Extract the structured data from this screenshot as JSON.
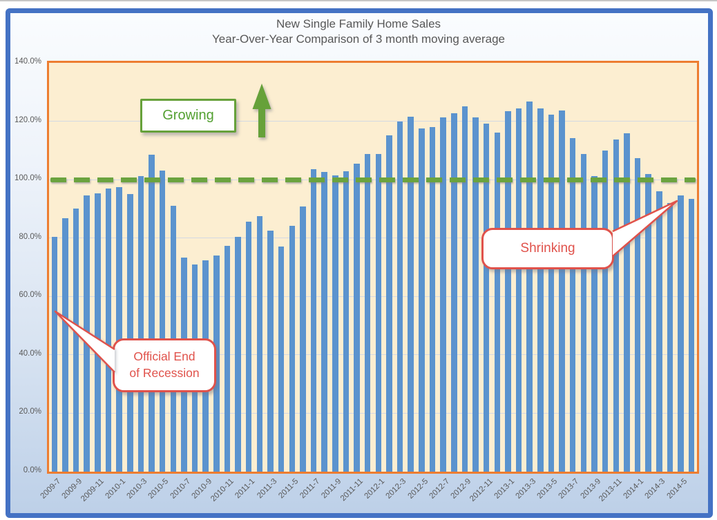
{
  "page": {
    "title_line1": "New Single Family Home Sales",
    "title_line2": "Year-Over-Year Comparison of 3 month moving average"
  },
  "chart_data": {
    "type": "bar",
    "title": "New Single Family Home Sales",
    "subtitle": "Year-Over-Year Comparison of 3 month moving average",
    "xlabel": "",
    "ylabel": "",
    "ylim": [
      0,
      140
    ],
    "grid": true,
    "legend": "none",
    "bar_color": "#5B93CE",
    "plot_bg_color": "#FCEED1",
    "plot_border_color": "#ED7D31",
    "frame_color": "#4472C4",
    "grid_color": "#D3D9E3",
    "yticks": [
      {
        "value": 140,
        "label": "140.0%"
      },
      {
        "value": 120,
        "label": "120.0%"
      },
      {
        "value": 100,
        "label": "100.0%"
      },
      {
        "value": 80,
        "label": "80.0%"
      },
      {
        "value": 60,
        "label": "60.0%"
      },
      {
        "value": 40,
        "label": "40.0%"
      },
      {
        "value": 20,
        "label": "20.0%"
      },
      {
        "value": 0,
        "label": "0.0%"
      }
    ],
    "x_tick_labels": [
      "2009-7",
      "2009-9",
      "2009-11",
      "2010-1",
      "2010-3",
      "2010-5",
      "2010-7",
      "2010-9",
      "2010-11",
      "2011-1",
      "2011-3",
      "2011-5",
      "2011-7",
      "2011-9",
      "2011-11",
      "2012-1",
      "2012-3",
      "2012-5",
      "2012-7",
      "2012-9",
      "2012-11",
      "2013-1",
      "2013-3",
      "2013-5",
      "2013-7",
      "2013-9",
      "2013-11",
      "2014-1",
      "2014-3",
      "2014-5"
    ],
    "categories": [
      "2009-7",
      "2009-8",
      "2009-9",
      "2009-10",
      "2009-11",
      "2009-12",
      "2010-1",
      "2010-2",
      "2010-3",
      "2010-4",
      "2010-5",
      "2010-6",
      "2010-7",
      "2010-8",
      "2010-9",
      "2010-10",
      "2010-11",
      "2010-12",
      "2011-1",
      "2011-2",
      "2011-3",
      "2011-4",
      "2011-5",
      "2011-6",
      "2011-7",
      "2011-8",
      "2011-9",
      "2011-10",
      "2011-11",
      "2011-12",
      "2012-1",
      "2012-2",
      "2012-3",
      "2012-4",
      "2012-5",
      "2012-6",
      "2012-7",
      "2012-8",
      "2012-9",
      "2012-10",
      "2012-11",
      "2012-12",
      "2013-1",
      "2013-2",
      "2013-3",
      "2013-4",
      "2013-5",
      "2013-6",
      "2013-7",
      "2013-8",
      "2013-9",
      "2013-10",
      "2013-11",
      "2013-12",
      "2014-1",
      "2014-2",
      "2014-3",
      "2014-4",
      "2014-5",
      "2014-6"
    ],
    "values": [
      80.4,
      86.9,
      90.2,
      94.7,
      95.3,
      96.9,
      97.4,
      95.1,
      101.3,
      108.6,
      103.0,
      91.1,
      73.4,
      71.0,
      72.4,
      74.1,
      77.3,
      80.5,
      85.7,
      87.5,
      82.6,
      77.0,
      84.2,
      90.9,
      103.6,
      102.7,
      101.5,
      102.9,
      105.5,
      108.7,
      108.9,
      115.2,
      120.0,
      121.6,
      117.6,
      117.9,
      121.3,
      122.8,
      125.2,
      121.4,
      119.2,
      116.2,
      123.5,
      124.4,
      126.8,
      124.4,
      122.3,
      123.7,
      114.2,
      108.8,
      101.3,
      109.9,
      113.7,
      116.0,
      107.4,
      102.0,
      96.0,
      92.1,
      94.5,
      93.3
    ],
    "reference_line": {
      "value": 100,
      "style": "dashed",
      "color": "#6BA33F"
    }
  },
  "annotations": {
    "growing": {
      "label": "Growing",
      "color": "#53A031"
    },
    "shrinking": {
      "label": "Shrinking",
      "color": "#E0524B"
    },
    "recession": {
      "line1": "Official End",
      "line2": "of  Recession",
      "color": "#E0524B"
    }
  }
}
